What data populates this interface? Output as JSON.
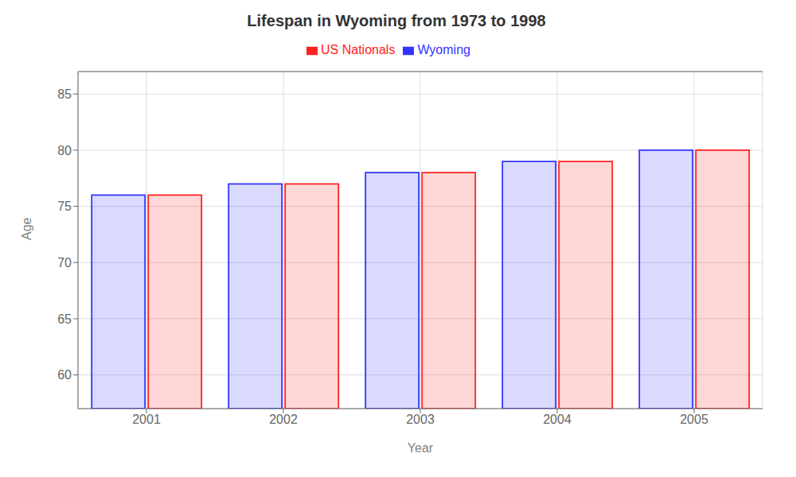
{
  "chart_data": {
    "type": "bar",
    "title": "Lifespan in Wyoming from 1973 to 1998",
    "xlabel": "Year",
    "ylabel": "Age",
    "categories": [
      "2001",
      "2002",
      "2003",
      "2004",
      "2005"
    ],
    "series": [
      {
        "name": "Wyoming",
        "color": "#3333ff",
        "values": [
          76,
          77,
          78,
          79,
          80
        ]
      },
      {
        "name": "US Nationals",
        "color": "#ff2222",
        "values": [
          76,
          77,
          78,
          79,
          80
        ]
      }
    ],
    "ylim": [
      57,
      87
    ],
    "yticks": [
      60,
      65,
      70,
      75,
      80,
      85
    ],
    "grid": true,
    "legend": "top"
  }
}
